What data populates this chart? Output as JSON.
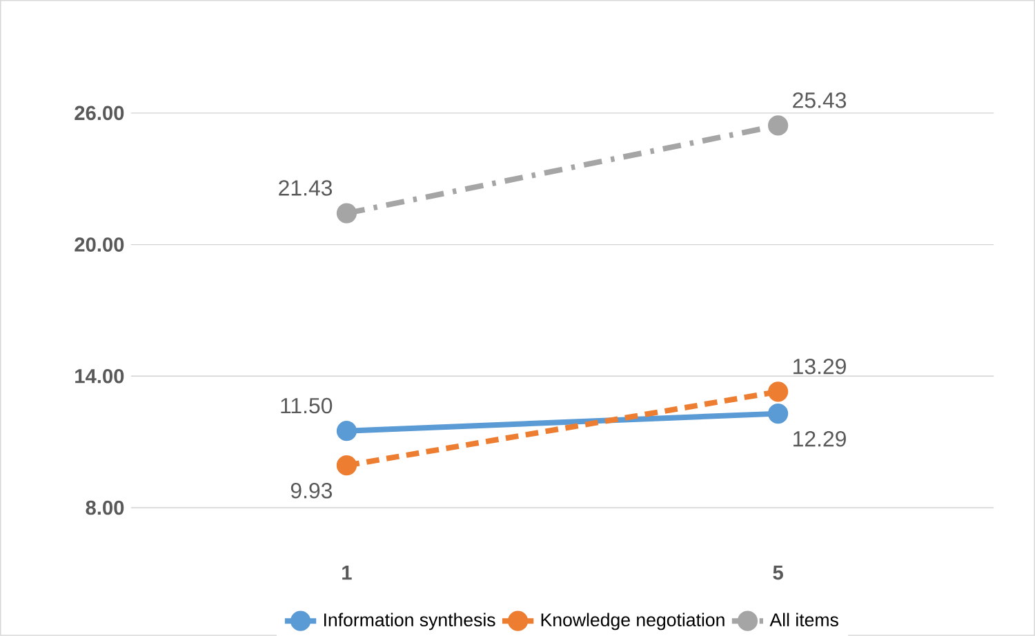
{
  "chart_data": {
    "type": "line",
    "categories": [
      "1",
      "5"
    ],
    "series": [
      {
        "name": "Information synthesis",
        "color": "#5b9bd5",
        "values": [
          11.5,
          12.29
        ],
        "value_labels": [
          "11.50",
          "12.29"
        ],
        "line_style": "solid"
      },
      {
        "name": "Knowledge negotiation",
        "color": "#ed7d31",
        "values": [
          9.93,
          13.29
        ],
        "value_labels": [
          "9.93",
          "13.29"
        ],
        "line_style": "dashed"
      },
      {
        "name": "All items",
        "color": "#a5a5a5",
        "values": [
          21.43,
          25.43
        ],
        "value_labels": [
          "21.43",
          "25.43"
        ],
        "line_style": "dashdot"
      }
    ],
    "ylim": [
      8,
      26
    ],
    "yticks": [
      {
        "value": 8,
        "label": "8.00"
      },
      {
        "value": 14,
        "label": "14.00"
      },
      {
        "value": 20,
        "label": "20.00"
      },
      {
        "value": 26,
        "label": "26.00"
      }
    ],
    "grid": "y",
    "legend": "bottom",
    "marker": "circle"
  }
}
